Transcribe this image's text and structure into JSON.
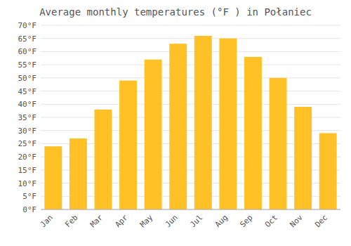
{
  "chart_data": {
    "type": "bar",
    "title": "Average monthly temperatures (°F ) in Połaniec",
    "categories": [
      "Jan",
      "Feb",
      "Mar",
      "Apr",
      "May",
      "Jun",
      "Jul",
      "Aug",
      "Sep",
      "Oct",
      "Nov",
      "Dec"
    ],
    "values": [
      24,
      27,
      38,
      49,
      57,
      63,
      66,
      65,
      58,
      50,
      39,
      29
    ],
    "color": "#FFC125",
    "ylim": [
      0,
      70
    ],
    "yticks": [
      {
        "value": 0,
        "label": "0°F"
      },
      {
        "value": 5,
        "label": "5°F"
      },
      {
        "value": 10,
        "label": "10°F"
      },
      {
        "value": 15,
        "label": "15°F"
      },
      {
        "value": 20,
        "label": "20°F"
      },
      {
        "value": 25,
        "label": "25°F"
      },
      {
        "value": 30,
        "label": "30°F"
      },
      {
        "value": 35,
        "label": "35°F"
      },
      {
        "value": 40,
        "label": "40°F"
      },
      {
        "value": 45,
        "label": "45°F"
      },
      {
        "value": 50,
        "label": "50°F"
      },
      {
        "value": 55,
        "label": "55°F"
      },
      {
        "value": 60,
        "label": "60°F"
      },
      {
        "value": 65,
        "label": "65°F"
      },
      {
        "value": 70,
        "label": "70°F"
      }
    ],
    "grid": true
  }
}
